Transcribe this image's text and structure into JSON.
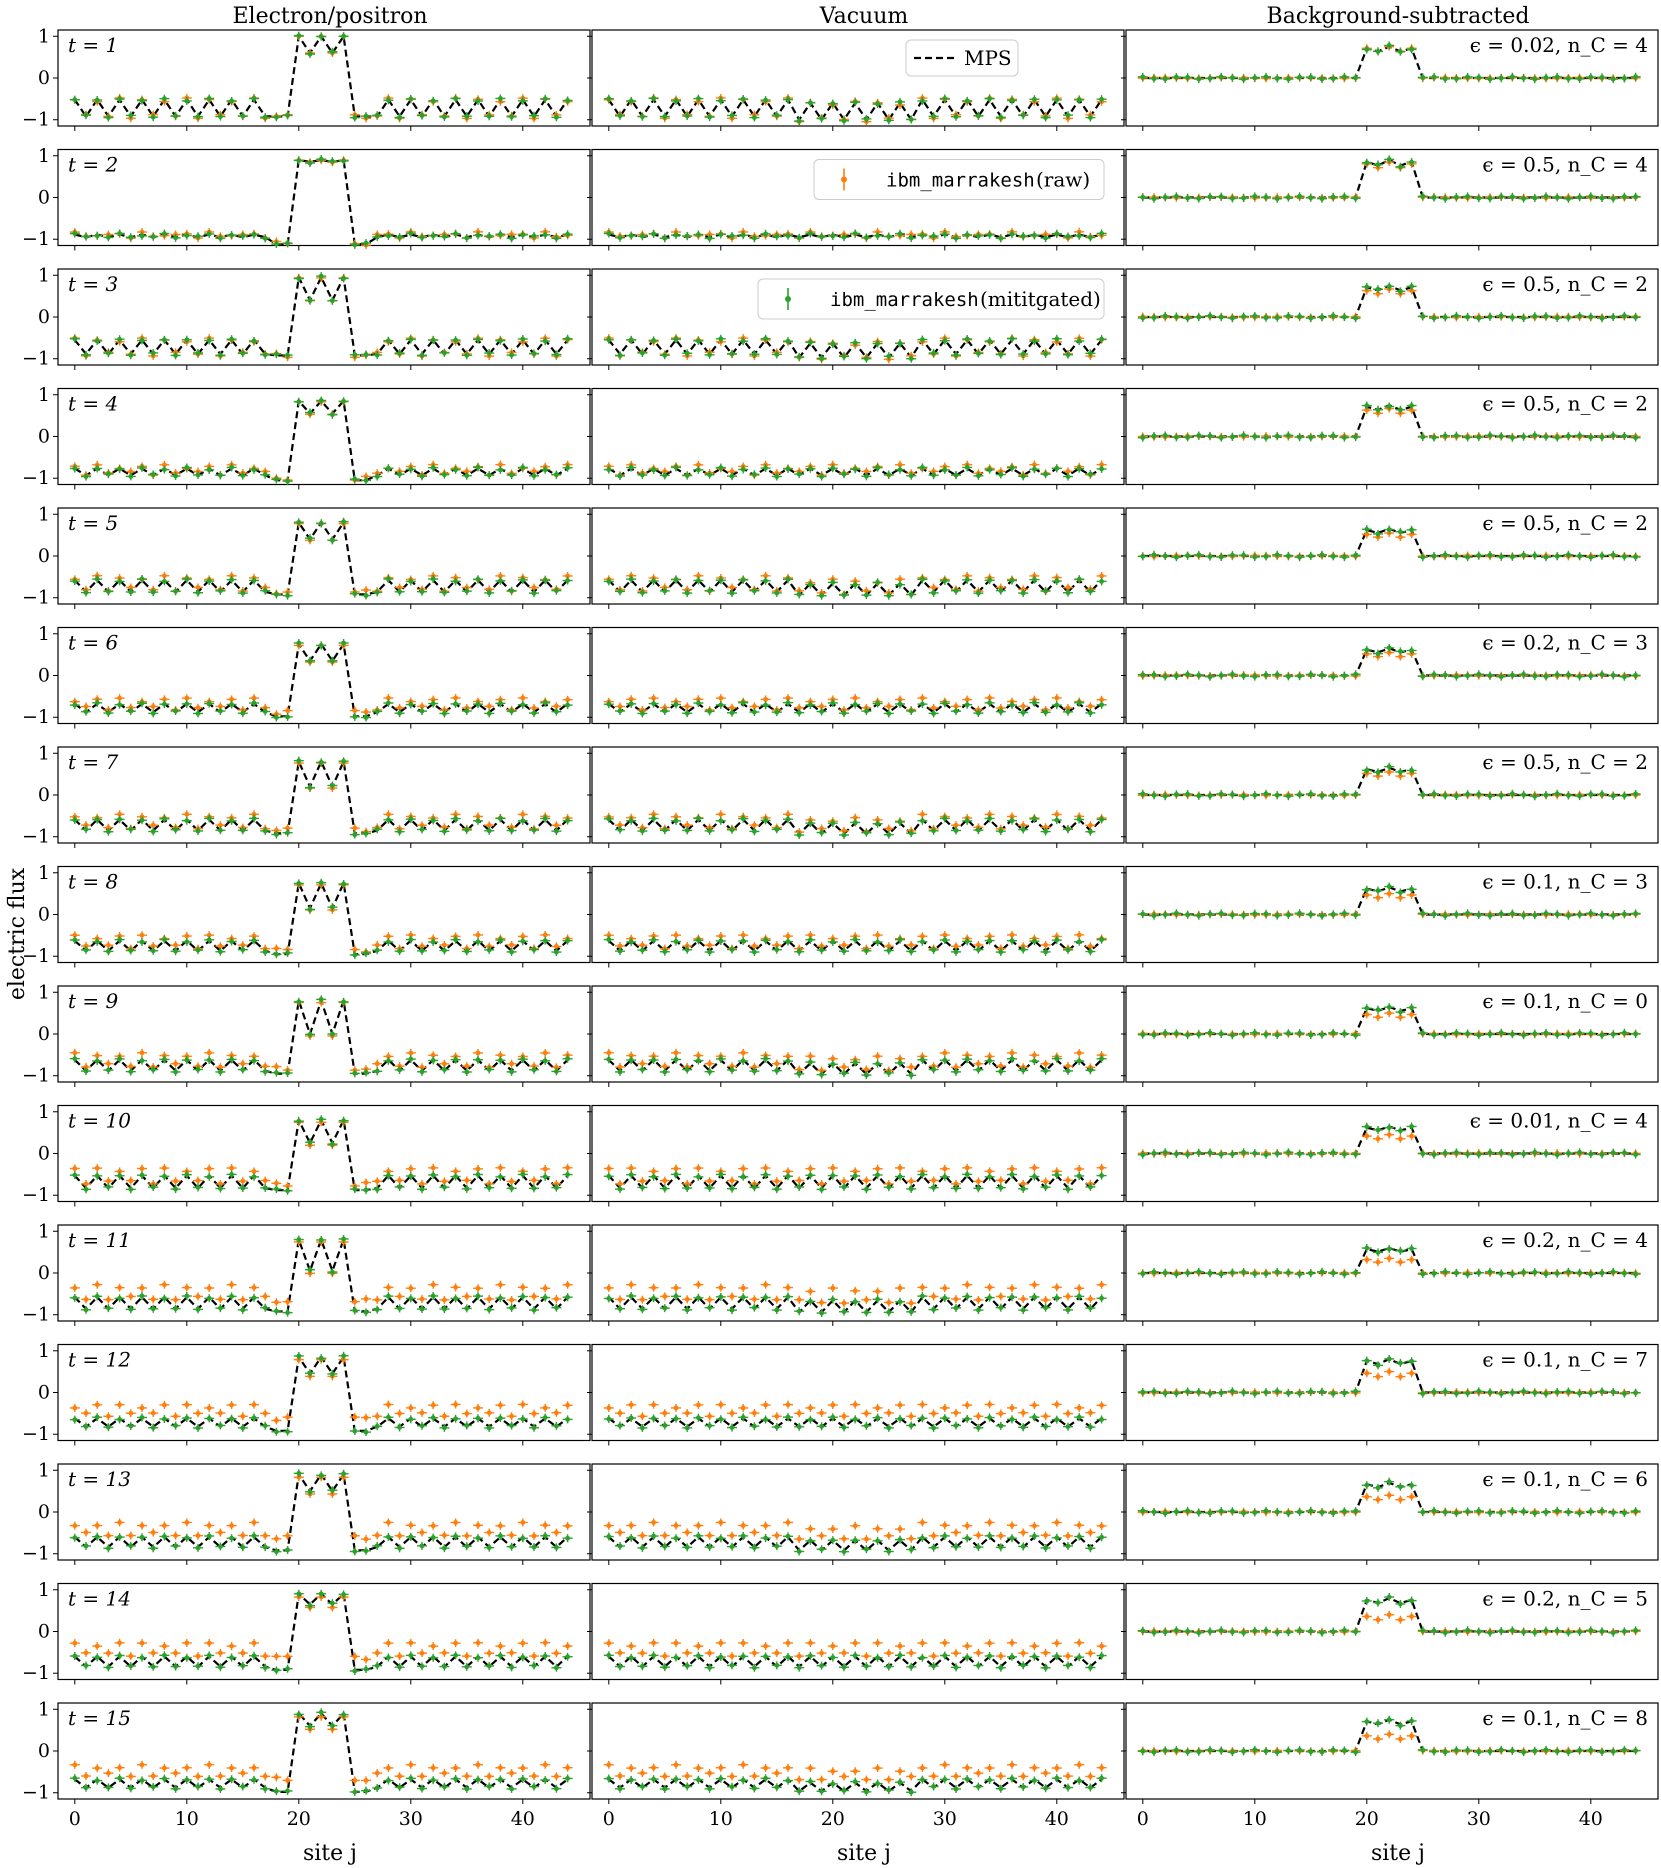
{
  "chart_data": {
    "type": "line",
    "columns": [
      {
        "title": "Electron/positron"
      },
      {
        "title": "Vacuum"
      },
      {
        "title": "Background-subtracted"
      }
    ],
    "ylabel": "electric flux",
    "xlabel": "site j",
    "x_ticks": [
      "0",
      "10",
      "20",
      "30",
      "40"
    ],
    "y_ticks": [
      "1",
      "0",
      "−1"
    ],
    "x_range": [
      0,
      44
    ],
    "y_range": [
      -1,
      1
    ],
    "legend": {
      "mps": "MPS",
      "raw_mono": "ibm_marrakesh",
      "raw_suffix": " (raw)",
      "mit_mono": "ibm_marrakesh",
      "mit_suffix": " (mititgated)"
    },
    "colors": {
      "mps": "#000000",
      "raw": "#ff7f0e",
      "mitigated": "#2ca02c"
    },
    "rows": [
      {
        "t": "t = 1",
        "annot": "ϵ = 0.02, n_C = 4"
      },
      {
        "t": "t = 2",
        "annot": "ϵ = 0.5, n_C = 4"
      },
      {
        "t": "t = 3",
        "annot": "ϵ = 0.5, n_C = 2"
      },
      {
        "t": "t = 4",
        "annot": "ϵ = 0.5, n_C = 2"
      },
      {
        "t": "t = 5",
        "annot": "ϵ = 0.5, n_C = 2"
      },
      {
        "t": "t = 6",
        "annot": "ϵ = 0.2, n_C = 3"
      },
      {
        "t": "t = 7",
        "annot": "ϵ = 0.5, n_C = 2"
      },
      {
        "t": "t = 8",
        "annot": "ϵ = 0.1, n_C = 3"
      },
      {
        "t": "t = 9",
        "annot": "ϵ = 0.1, n_C = 0"
      },
      {
        "t": "t = 10",
        "annot": "ϵ = 0.01, n_C = 4"
      },
      {
        "t": "t = 11",
        "annot": "ϵ = 0.2, n_C = 4"
      },
      {
        "t": "t = 12",
        "annot": "ϵ = 0.1, n_C = 7"
      },
      {
        "t": "t = 13",
        "annot": "ϵ = 0.1, n_C = 6"
      },
      {
        "t": "t = 14",
        "annot": "ϵ = 0.2, n_C = 5"
      },
      {
        "t": "t = 15",
        "annot": "ϵ = 0.1, n_C = 8"
      }
    ],
    "series_model": {
      "sites": 45,
      "bump_sites": [
        20,
        21,
        22,
        23,
        24
      ],
      "bump_peak": [
        1.0,
        0.9,
        0.95,
        0.85,
        0.8,
        0.75,
        0.8,
        0.75,
        0.8,
        0.8,
        0.8,
        0.85,
        0.9,
        0.9,
        0.9
      ],
      "bump_dip": [
        0.6,
        0.85,
        0.4,
        0.55,
        0.4,
        0.35,
        0.2,
        0.15,
        0.0,
        0.25,
        0.05,
        0.45,
        0.5,
        0.65,
        0.6
      ],
      "bg_base": [
        -0.72,
        -0.92,
        -0.72,
        -0.85,
        -0.72,
        -0.78,
        -0.72,
        -0.75,
        -0.75,
        -0.68,
        -0.72,
        -0.72,
        -0.72,
        -0.72,
        -0.78
      ],
      "bg_amp": [
        0.2,
        0.03,
        0.17,
        0.08,
        0.14,
        0.1,
        0.13,
        0.12,
        0.13,
        0.15,
        0.14,
        0.1,
        0.12,
        0.12,
        0.1
      ],
      "raw_offset": [
        0.0,
        0.02,
        0.0,
        0.05,
        0.06,
        0.1,
        0.08,
        0.1,
        0.12,
        0.15,
        0.25,
        0.3,
        0.3,
        0.3,
        0.3
      ],
      "bs_peak": [
        0.75,
        0.9,
        0.75,
        0.75,
        0.65,
        0.65,
        0.65,
        0.65,
        0.65,
        0.65,
        0.6,
        0.8,
        0.7,
        0.8,
        0.75
      ],
      "bs_raw_drop": [
        0.0,
        0.05,
        0.08,
        0.08,
        0.1,
        0.1,
        0.1,
        0.15,
        0.15,
        0.2,
        0.25,
        0.3,
        0.3,
        0.4,
        0.35
      ]
    }
  }
}
